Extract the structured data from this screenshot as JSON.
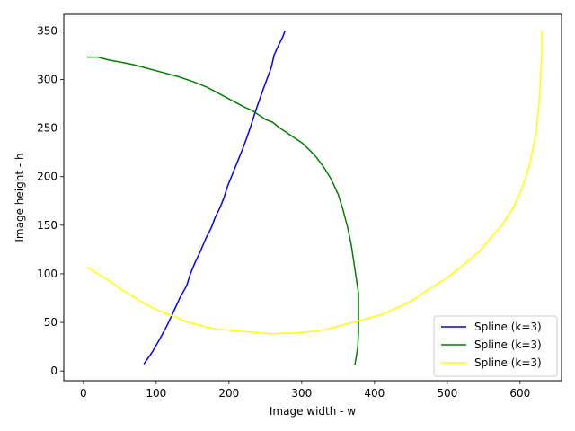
{
  "chart_data": {
    "type": "line",
    "title": "",
    "xlabel": "Image width  - w",
    "ylabel": "Image height - h",
    "xlim": [
      -27,
      657
    ],
    "ylim": [
      -10,
      367
    ],
    "xticks": [
      0,
      100,
      200,
      300,
      400,
      500,
      600
    ],
    "yticks": [
      0,
      50,
      100,
      150,
      200,
      250,
      300,
      350
    ],
    "grid": false,
    "legend_position": "lower-right",
    "series": [
      {
        "name": "Spline (k=3)",
        "color": "#0000ff",
        "points": [
          [
            83,
            7
          ],
          [
            95,
            20
          ],
          [
            105,
            33
          ],
          [
            115,
            47
          ],
          [
            125,
            63
          ],
          [
            133,
            76
          ],
          [
            142,
            88
          ],
          [
            147,
            100
          ],
          [
            153,
            111
          ],
          [
            160,
            122
          ],
          [
            168,
            136
          ],
          [
            176,
            148
          ],
          [
            181,
            158
          ],
          [
            187,
            167
          ],
          [
            193,
            178
          ],
          [
            198,
            190
          ],
          [
            205,
            203
          ],
          [
            212,
            216
          ],
          [
            218,
            227
          ],
          [
            224,
            239
          ],
          [
            230,
            252
          ],
          [
            235,
            264
          ],
          [
            241,
            277
          ],
          [
            247,
            290
          ],
          [
            253,
            302
          ],
          [
            258,
            312
          ],
          [
            262,
            325
          ],
          [
            268,
            335
          ],
          [
            274,
            344
          ],
          [
            277,
            350
          ]
        ]
      },
      {
        "name": "Spline (k=3)",
        "color": "#008000",
        "points": [
          [
            5,
            323
          ],
          [
            20,
            323
          ],
          [
            35,
            320
          ],
          [
            50,
            318
          ],
          [
            70,
            315
          ],
          [
            90,
            311
          ],
          [
            110,
            307
          ],
          [
            130,
            303
          ],
          [
            150,
            298
          ],
          [
            170,
            292
          ],
          [
            190,
            284
          ],
          [
            205,
            278
          ],
          [
            220,
            272
          ],
          [
            232,
            268
          ],
          [
            240,
            264
          ],
          [
            250,
            259
          ],
          [
            260,
            256
          ],
          [
            270,
            250
          ],
          [
            280,
            245
          ],
          [
            290,
            240
          ],
          [
            300,
            235
          ],
          [
            310,
            228
          ],
          [
            320,
            220
          ],
          [
            330,
            210
          ],
          [
            340,
            198
          ],
          [
            350,
            182
          ],
          [
            357,
            165
          ],
          [
            363,
            148
          ],
          [
            368,
            130
          ],
          [
            372,
            110
          ],
          [
            375,
            95
          ],
          [
            378,
            80
          ],
          [
            378,
            60
          ],
          [
            378,
            40
          ],
          [
            377,
            25
          ],
          [
            375,
            15
          ],
          [
            373,
            6
          ]
        ]
      },
      {
        "name": "Spline (k=3)",
        "color": "#ffff00",
        "points": [
          [
            5,
            107
          ],
          [
            20,
            100
          ],
          [
            35,
            93
          ],
          [
            50,
            85
          ],
          [
            65,
            78
          ],
          [
            80,
            71
          ],
          [
            95,
            65
          ],
          [
            110,
            60
          ],
          [
            125,
            56
          ],
          [
            140,
            51
          ],
          [
            155,
            48
          ],
          [
            170,
            45
          ],
          [
            185,
            43
          ],
          [
            200,
            42
          ],
          [
            215,
            41
          ],
          [
            230,
            40
          ],
          [
            245,
            39
          ],
          [
            260,
            38
          ],
          [
            275,
            39
          ],
          [
            290,
            39
          ],
          [
            305,
            40
          ],
          [
            320,
            41
          ],
          [
            335,
            43
          ],
          [
            350,
            46
          ],
          [
            365,
            49
          ],
          [
            380,
            52
          ],
          [
            395,
            55
          ],
          [
            410,
            58
          ],
          [
            425,
            63
          ],
          [
            440,
            68
          ],
          [
            455,
            74
          ],
          [
            470,
            82
          ],
          [
            485,
            89
          ],
          [
            500,
            96
          ],
          [
            515,
            105
          ],
          [
            530,
            114
          ],
          [
            545,
            124
          ],
          [
            560,
            137
          ],
          [
            575,
            150
          ],
          [
            590,
            167
          ],
          [
            600,
            183
          ],
          [
            608,
            200
          ],
          [
            614,
            215
          ],
          [
            618,
            230
          ],
          [
            622,
            245
          ],
          [
            624,
            260
          ],
          [
            626,
            275
          ],
          [
            628,
            295
          ],
          [
            629,
            315
          ],
          [
            630,
            330
          ],
          [
            630,
            350
          ]
        ]
      }
    ]
  }
}
